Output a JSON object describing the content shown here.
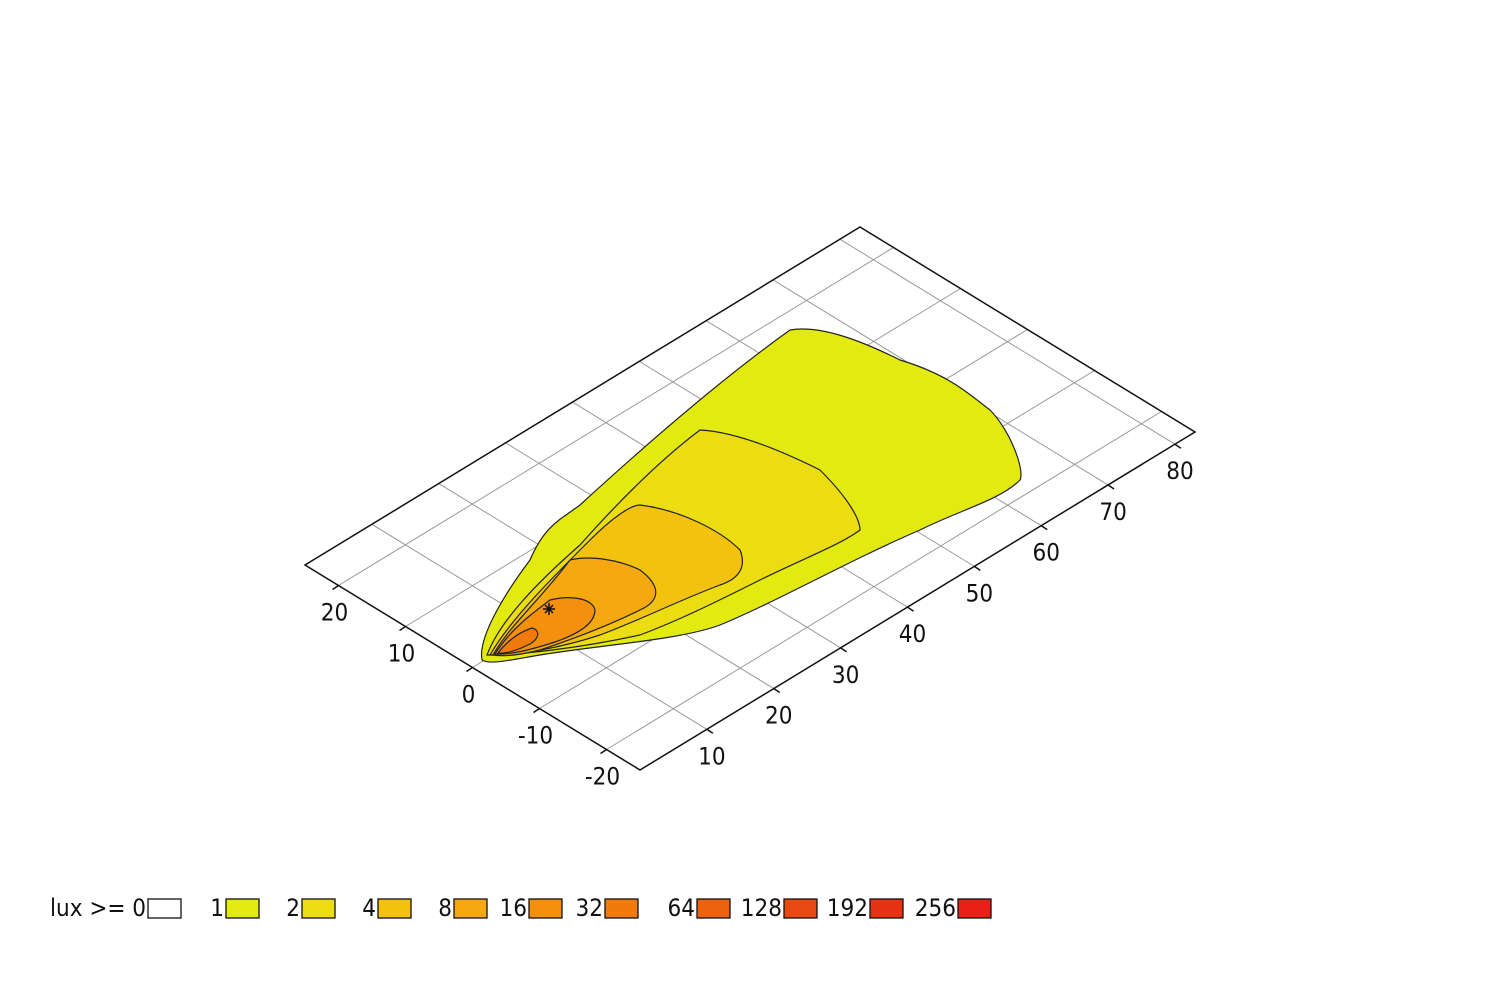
{
  "chart_data": {
    "type": "isolux",
    "xlim": [
      0,
      83
    ],
    "xticks": [
      10,
      20,
      30,
      40,
      50,
      60,
      70,
      80
    ],
    "ylim": [
      -25,
      25
    ],
    "yticks": [
      -20,
      -10,
      0,
      10,
      20
    ],
    "grid": true,
    "legend_label": "lux >=",
    "levels": [
      0,
      1,
      2,
      4,
      8,
      16,
      32,
      64,
      128,
      192,
      256
    ],
    "colors": [
      "#ffffff",
      "#e3ea0f",
      "#ecdc12",
      "#f2c20e",
      "#f5a810",
      "#f5900c",
      "#f07a0a",
      "#ec6210",
      "#e84a12",
      "#e83214",
      "#e82018"
    ]
  }
}
